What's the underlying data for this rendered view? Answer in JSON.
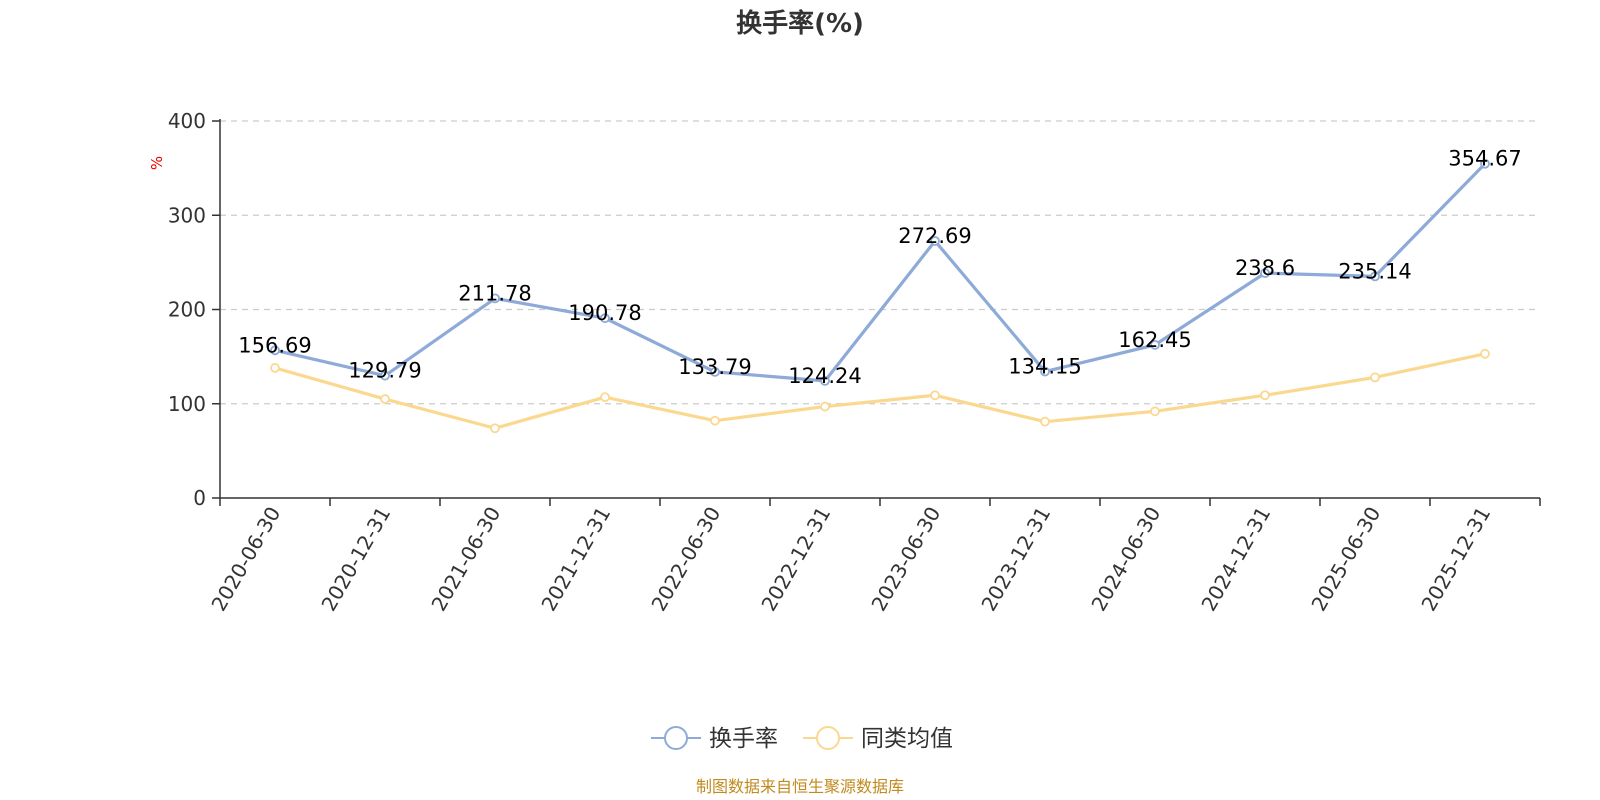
{
  "chart_data": {
    "type": "line",
    "title": "换手率(%)",
    "ylabel": "%",
    "xlabel": "",
    "categories": [
      "2020-06-30",
      "2020-12-31",
      "2021-06-30",
      "2021-12-31",
      "2022-06-30",
      "2022-12-31",
      "2023-06-30",
      "2023-12-31",
      "2024-06-30",
      "2024-12-31",
      "2025-06-30",
      "2025-12-31"
    ],
    "ylim": [
      0,
      400
    ],
    "yticks": [
      "0",
      "100",
      "200",
      "300",
      "400"
    ],
    "grid": true,
    "legend_position": "bottom",
    "series": [
      {
        "name": "换手率",
        "color": "#8eaad8",
        "values": [
          156.69,
          129.79,
          211.78,
          190.78,
          133.79,
          124.24,
          272.69,
          134.15,
          162.45,
          238.6,
          235.14,
          354.67
        ],
        "labels": [
          "156.69",
          "129.79",
          "211.78",
          "190.78",
          "133.79",
          "124.24",
          "272.69",
          "134.15",
          "162.45",
          "238.6",
          "235.14",
          "354.67"
        ]
      },
      {
        "name": "同类均值",
        "color": "#fbd890",
        "values": [
          138,
          105,
          74,
          107,
          82,
          97,
          109,
          81,
          92,
          109,
          128,
          153
        ]
      }
    ]
  },
  "source": "制图数据来自恒生聚源数据库"
}
